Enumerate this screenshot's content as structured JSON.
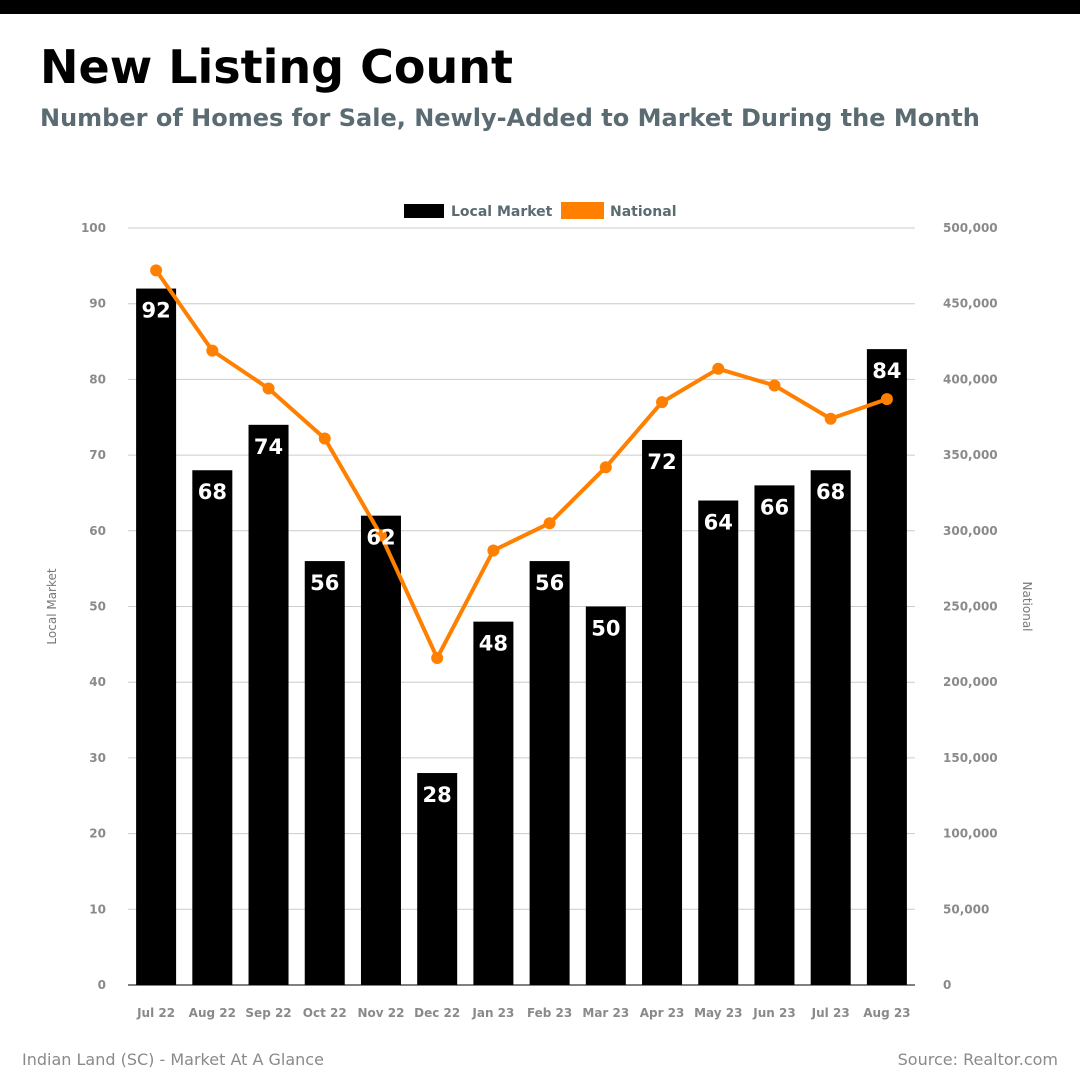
{
  "title": "New Listing Count",
  "subtitle": "Number of Homes for Sale, Newly-Added to Market During the Month",
  "footer": {
    "left": "Indian Land (SC) - Market At A Glance",
    "right": "Source: Realtor.com"
  },
  "colors": {
    "local": "#000000",
    "national": "#ff8000",
    "grid": "#cccccc",
    "title": "#000000",
    "subtitle": "#5a6b72"
  },
  "chart_data": {
    "type": "bar",
    "categories": [
      "Jul 22",
      "Aug 22",
      "Sep 22",
      "Oct 22",
      "Nov 22",
      "Dec 22",
      "Jan 23",
      "Feb 23",
      "Mar 23",
      "Apr 23",
      "May 23",
      "Jun 23",
      "Jul 23",
      "Aug 23"
    ],
    "series": [
      {
        "name": "Local Market",
        "type": "bar",
        "axis": "left",
        "values": [
          92,
          68,
          74,
          56,
          62,
          28,
          48,
          56,
          50,
          72,
          64,
          66,
          68,
          84
        ]
      },
      {
        "name": "National",
        "type": "line",
        "axis": "right",
        "values": [
          472000,
          419000,
          394000,
          361000,
          297000,
          216000,
          287000,
          305000,
          342000,
          385000,
          407000,
          396000,
          374000,
          387000
        ]
      }
    ],
    "ylabel": "Local Market",
    "y2label": "National",
    "ylim": [
      0,
      100
    ],
    "y2lim": [
      0,
      500000
    ],
    "yticks": [
      "0",
      "10",
      "20",
      "30",
      "40",
      "50",
      "60",
      "70",
      "80",
      "90",
      "100"
    ],
    "y2ticks": [
      "0",
      "50,000",
      "100,000",
      "150,000",
      "200,000",
      "250,000",
      "300,000",
      "350,000",
      "400,000",
      "450,000",
      "500,000"
    ],
    "grid": true,
    "legend": "top-center"
  }
}
